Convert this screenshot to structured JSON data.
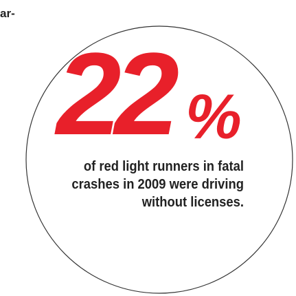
{
  "colors": {
    "accent": "#e8202a",
    "text": "#222222",
    "circle_stroke": "#333333"
  },
  "fragments": {
    "top_partial": "",
    "left_partial": "ar-"
  },
  "statistic": {
    "number": "22",
    "unit": "%"
  },
  "caption": {
    "line1": "of red light runners in fatal",
    "line2": "crashes in 2009 were driving",
    "line3": "without licenses."
  }
}
